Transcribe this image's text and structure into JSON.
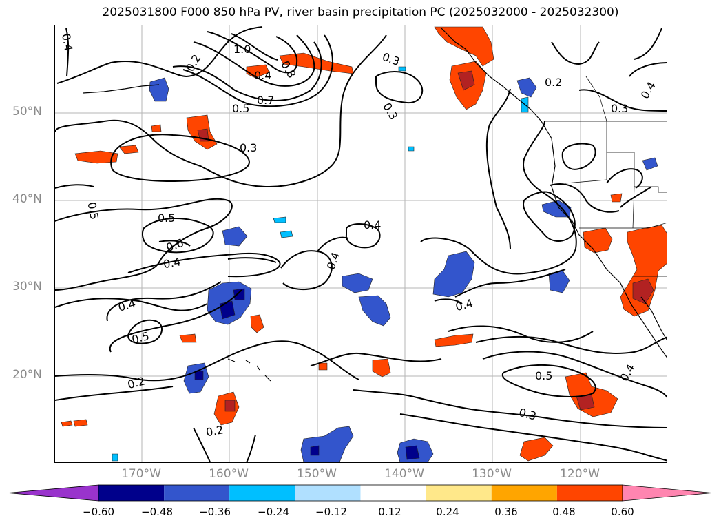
{
  "title": "2025031800 F000 850 hPa PV, river basin precipitation PC (2025032000 - 2025032300)",
  "map": {
    "lat_labels": [
      "50°N",
      "40°N",
      "30°N",
      "20°N"
    ],
    "lon_labels": [
      "170°W",
      "160°W",
      "150°W",
      "140°W",
      "130°W",
      "120°W"
    ],
    "contour_labels": [
      "0.4",
      "1.0",
      "0.8",
      "0.3",
      "0.2",
      "0.4",
      "0.7",
      "0.5",
      "0.3",
      "0.3",
      "0.2",
      "0.3",
      "0.5",
      "0.5",
      "0.6",
      "0.4",
      "0.4",
      "0.4",
      "0.4",
      "0.4",
      "0.5",
      "0.2",
      "0.2",
      "0.5",
      "0.3",
      "0.4",
      "0.4"
    ]
  },
  "colorbar": {
    "ticks": [
      "−0.60",
      "−0.48",
      "−0.36",
      "−0.24",
      "−0.12",
      "0.12",
      "0.24",
      "0.36",
      "0.48",
      "0.60"
    ],
    "colors": [
      "#9933cc",
      "#00008b",
      "#3355cc",
      "#00bfff",
      "#b0e0ff",
      "#ffffff",
      "#ffe88a",
      "#ffa500",
      "#ff4500",
      "#b22222",
      "#ff85b0"
    ]
  }
}
